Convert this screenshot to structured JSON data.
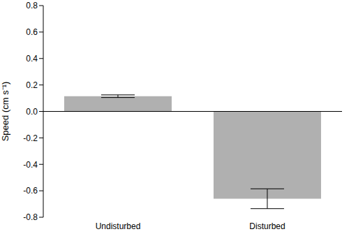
{
  "chart_data": {
    "type": "bar",
    "y_label": "Speed (cm s⁻¹)",
    "categories": [
      "Undisturbed",
      "Disturbed"
    ],
    "values": [
      0.115,
      -0.66
    ],
    "errors": [
      0.01,
      0.075
    ],
    "color": "#b0b0b0",
    "ylim": [
      -0.8,
      0.8
    ],
    "yticks": [
      -0.8,
      -0.6,
      -0.4,
      -0.2,
      {
        "value": 0,
        "label": "0.0"
      },
      0.2,
      0.4,
      0.6,
      0.8
    ],
    "grid": false
  }
}
